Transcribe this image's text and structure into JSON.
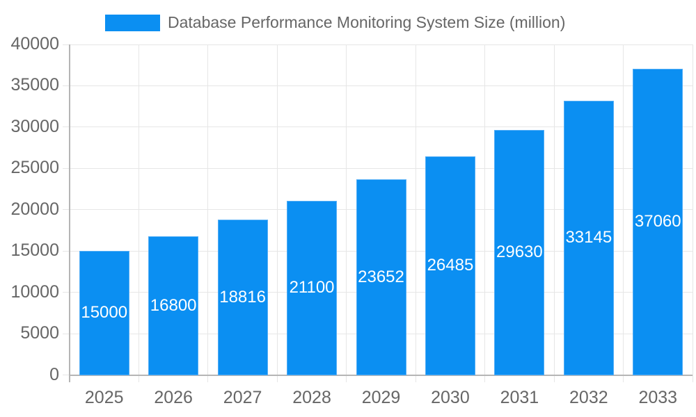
{
  "legend": {
    "label": "Database Performance Monitoring System Size (million)"
  },
  "colors": {
    "bar": "#0b8ff2",
    "bar_border": "#54aef6",
    "grid": "#e6e6e6",
    "axis": "#b5b5b5",
    "text": "#666666",
    "value_label": "#ffffff",
    "background": "#ffffff"
  },
  "chart_data": {
    "type": "bar",
    "title": "Database Performance Monitoring System Size (million)",
    "series_name": "Database Performance Monitoring System Size (million)",
    "categories": [
      "2025",
      "2026",
      "2027",
      "2028",
      "2029",
      "2030",
      "2031",
      "2032",
      "2033"
    ],
    "values": [
      15000,
      16800,
      18816,
      21100,
      23652,
      26485,
      29630,
      33145,
      37060
    ],
    "value_labels_position": "inside-center",
    "xlabel": "",
    "ylabel": "",
    "ylim": [
      0,
      40000
    ],
    "ytick_step": 5000,
    "yticks": [
      0,
      5000,
      10000,
      15000,
      20000,
      25000,
      30000,
      35000,
      40000
    ],
    "grid": true,
    "legend_position": "top"
  }
}
